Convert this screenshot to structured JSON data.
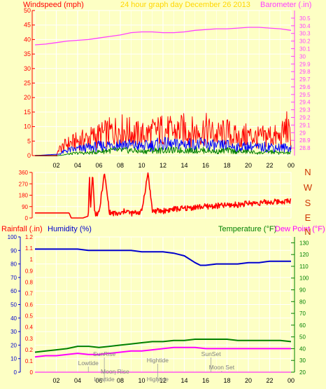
{
  "header": {
    "left_label": "Windspeed (mph)",
    "center_label": "24 hour graph day   December 26 2013",
    "right_label": "Barometer (.in)"
  },
  "colors": {
    "background": "#fdffc4",
    "grid": "#ffffff",
    "wind_max": "#ff0000",
    "wind_avg": "#0000ff",
    "wind_min": "#008000",
    "baseline": "#800000",
    "barometer": "#ff40ff",
    "direction": "#ff0000",
    "rain": "#ff00ff",
    "humidity": "#0000cc",
    "temperature": "#008000",
    "dewpoint": "#ff00ff",
    "center_text": "#ffd700",
    "event_text": "#808080"
  },
  "chart_data": [
    {
      "id": "wind_baro",
      "type": "line",
      "x_ticks": [
        "02",
        "04",
        "06",
        "08",
        "10",
        "12",
        "14",
        "16",
        "18",
        "20",
        "22",
        "00"
      ],
      "y_left_label": "Windspeed (mph)",
      "y_left_range": [
        0,
        50
      ],
      "y_left_ticks": [
        0,
        5,
        10,
        15,
        20,
        25,
        30,
        35,
        40,
        45,
        50
      ],
      "y_right_label": "Barometer (.in)",
      "y_right_range": [
        28.7,
        30.6
      ],
      "y_right_ticks": [
        "28.8",
        "28.9",
        "29",
        "29.1",
        "29.2",
        "29.3",
        "29.4",
        "29.5",
        "29.6",
        "29.7",
        "29.8",
        "29.9",
        "30",
        "30.1",
        "30.2",
        "30.3",
        "30.4",
        "30.5"
      ],
      "series": [
        {
          "key": "barometer",
          "axis": "right",
          "x": [
            0,
            1,
            2,
            3,
            4,
            5,
            6,
            7,
            8,
            9,
            10,
            11,
            12,
            13,
            14,
            15,
            16,
            17,
            18,
            19,
            20,
            21,
            22,
            23,
            24
          ],
          "y": [
            30.15,
            30.16,
            30.18,
            30.2,
            30.21,
            30.22,
            30.24,
            30.26,
            30.28,
            30.31,
            30.32,
            30.32,
            30.31,
            30.31,
            30.32,
            30.34,
            30.35,
            30.36,
            30.36,
            30.37,
            30.38,
            30.38,
            30.37,
            30.36,
            30.34
          ]
        },
        {
          "key": "wind_max",
          "axis": "left",
          "x": [
            0,
            2.0,
            2.2,
            3,
            4,
            5,
            6,
            7,
            8,
            9,
            10,
            11,
            12,
            13,
            14,
            15,
            16,
            17,
            18,
            19,
            20,
            21,
            22,
            23,
            23.6,
            24
          ],
          "y": [
            0,
            0,
            2,
            4,
            5,
            6,
            7,
            8,
            9,
            8,
            7,
            8,
            9,
            8,
            9,
            8,
            9,
            7,
            8,
            6,
            7,
            6,
            7,
            6,
            10,
            5
          ]
        },
        {
          "key": "wind_avg",
          "axis": "left",
          "x": [
            0,
            2.2,
            3,
            4,
            5,
            6,
            7,
            8,
            9,
            10,
            11,
            12,
            13,
            14,
            15,
            16,
            17,
            18,
            19,
            20,
            21,
            22,
            23,
            24
          ],
          "y": [
            0,
            0.5,
            2,
            2.5,
            3,
            3.5,
            4,
            4.5,
            4,
            3.5,
            4,
            4.5,
            4,
            4.5,
            4,
            4.5,
            3.5,
            4,
            3,
            3.5,
            3,
            3.5,
            3,
            3
          ]
        },
        {
          "key": "wind_min",
          "axis": "left",
          "x": [
            0,
            2.2,
            3,
            4,
            5,
            6,
            7,
            8,
            9,
            10,
            11,
            12,
            13,
            14,
            15,
            16,
            17,
            18,
            19,
            20,
            21,
            22,
            23,
            24
          ],
          "y": [
            0,
            0,
            0.5,
            1,
            1,
            1.5,
            2,
            2,
            2,
            1.5,
            2,
            2,
            2,
            2,
            2,
            2,
            1.5,
            2,
            1.5,
            1.5,
            1,
            1.5,
            1,
            1
          ]
        }
      ]
    },
    {
      "id": "direction",
      "type": "line",
      "x_ticks": [
        "02",
        "04",
        "06",
        "08",
        "10",
        "12",
        "14",
        "16",
        "18",
        "20",
        "22",
        "00"
      ],
      "y_range": [
        0,
        360
      ],
      "y_ticks": [
        0,
        90,
        180,
        270,
        360
      ],
      "compass_labels": [
        "N",
        "W",
        "S",
        "E",
        "N"
      ],
      "series": [
        {
          "key": "direction",
          "x": [
            0,
            3.2,
            3.4,
            4.5,
            5.0,
            5.1,
            5.2,
            5.4,
            5.6,
            6.0,
            6.5,
            7.0,
            8.0,
            8.5,
            9.0,
            10.0,
            10.6,
            11.0,
            12.0,
            13.0,
            14.0,
            15.0,
            16.0,
            17.0,
            18.0,
            19.0,
            20.0,
            21.0,
            22.0,
            23.0,
            24.0
          ],
          "y": [
            40,
            40,
            0,
            0,
            15,
            360,
            60,
            360,
            40,
            30,
            360,
            40,
            30,
            60,
            35,
            50,
            360,
            55,
            55,
            70,
            75,
            85,
            90,
            95,
            100,
            105,
            115,
            120,
            125,
            130,
            135
          ]
        }
      ]
    },
    {
      "id": "rain_hum_temp",
      "type": "line",
      "x_ticks": [
        "02",
        "04",
        "06",
        "08",
        "10",
        "12",
        "14",
        "16",
        "18",
        "20",
        "22",
        "00"
      ],
      "rain_label": "Rainfall (.in)",
      "humidity_label": "Humidity (%)",
      "temperature_label": "Temperature (°F)",
      "dewpoint_label": "Dew Point (°F)",
      "y_left_ticks": [
        "0",
        "10",
        "20",
        "30",
        "40",
        "50",
        "60",
        "70",
        "80",
        "90",
        "100"
      ],
      "y_rain_ticks": [
        "0",
        "0.1",
        "0.2",
        "0.3",
        "0.4",
        "0.5",
        "0.6",
        "0.7",
        "0.8",
        "0.9",
        "1",
        "1.1",
        "1.2"
      ],
      "y_right_ticks": [
        "20",
        "30",
        "40",
        "50",
        "60",
        "70",
        "80",
        "90",
        "100",
        "110",
        "120",
        "130"
      ],
      "humidity_range": [
        0,
        100
      ],
      "temp_range": [
        20,
        135
      ],
      "series": [
        {
          "key": "humidity",
          "x": [
            0,
            1,
            2,
            3,
            4,
            5,
            6,
            7,
            8,
            9,
            10,
            11,
            12,
            13,
            14,
            15,
            15.5,
            16,
            17,
            18,
            19,
            20,
            21,
            22,
            23,
            24
          ],
          "y": [
            91,
            91,
            91,
            91,
            91,
            90,
            90,
            90,
            90,
            90,
            89,
            89,
            89,
            88,
            86,
            81,
            79,
            79,
            80,
            80,
            80,
            81,
            81,
            82,
            82,
            82
          ]
        },
        {
          "key": "temperature",
          "x": [
            0,
            1,
            2,
            3,
            4,
            5,
            6,
            7,
            8,
            9,
            10,
            11,
            12,
            13,
            14,
            15,
            16,
            17,
            18,
            19,
            20,
            21,
            22,
            23,
            24
          ],
          "y": [
            37,
            38,
            39,
            40,
            42,
            42,
            41,
            42,
            43,
            44,
            45,
            46,
            46,
            47,
            47,
            48,
            48,
            48,
            48,
            47,
            47,
            47,
            47,
            47,
            46
          ]
        },
        {
          "key": "dewpoint",
          "x": [
            0,
            1,
            2,
            3,
            4,
            5,
            6,
            7,
            8,
            9,
            10,
            11,
            12,
            13,
            14,
            15,
            16,
            17,
            18,
            19,
            20,
            21,
            22,
            23,
            24
          ],
          "y": [
            33,
            34,
            34,
            35,
            36,
            35,
            35,
            36,
            37,
            38,
            38,
            39,
            40,
            41,
            41,
            41,
            40,
            40,
            40,
            40,
            40,
            40,
            40,
            40,
            40
          ]
        },
        {
          "key": "rain",
          "x": [
            0,
            24
          ],
          "y": [
            0,
            0
          ]
        }
      ],
      "events": [
        "SunRise",
        "Lowtide",
        "Moon Rise",
        "Lowtide",
        "Hightide",
        "Hightide",
        "SunSet",
        "Moon Set"
      ]
    }
  ]
}
